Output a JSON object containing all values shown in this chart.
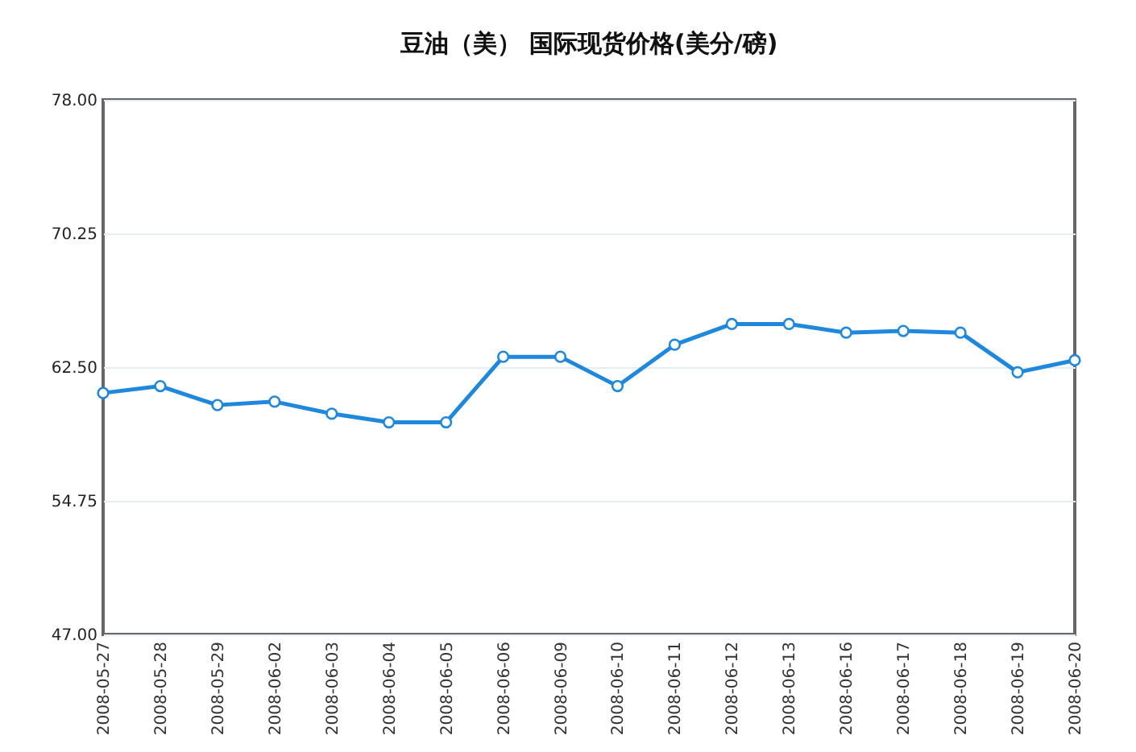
{
  "chart_data": {
    "type": "line",
    "title": "豆油（美）  国际现货价格(美分/磅)",
    "categories": [
      "2008-05-27",
      "2008-05-28",
      "2008-05-29",
      "2008-06-02",
      "2008-06-03",
      "2008-06-04",
      "2008-06-05",
      "2008-06-06",
      "2008-06-09",
      "2008-06-10",
      "2008-06-11",
      "2008-06-12",
      "2008-06-13",
      "2008-06-16",
      "2008-06-17",
      "2008-06-18",
      "2008-06-19",
      "2008-06-20"
    ],
    "series": [
      {
        "color": "#1f88dd",
        "values": [
          61.0,
          61.4,
          60.3,
          60.5,
          59.8,
          59.3,
          59.3,
          63.1,
          63.1,
          61.4,
          63.8,
          65.0,
          65.0,
          64.5,
          64.6,
          64.5,
          62.2,
          62.9
        ]
      }
    ],
    "ylim": [
      47,
      78
    ],
    "yticks": [
      {
        "value": 47,
        "label": "47.00"
      },
      {
        "value": 54.75,
        "label": "54.75"
      },
      {
        "value": 62.5,
        "label": "62.50"
      },
      {
        "value": 70.25,
        "label": "70.25"
      },
      {
        "value": 78,
        "label": "78.00"
      }
    ],
    "grid": "y",
    "marker": "circle",
    "line_style": "solid",
    "legend": false
  }
}
